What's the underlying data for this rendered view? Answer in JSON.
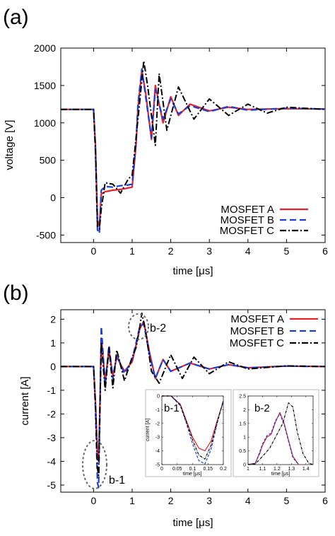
{
  "colors": {
    "mosfet_a": "#e8202a",
    "mosfet_b": "#1a3fd6",
    "mosfet_c": "#000000",
    "ellipse": "#666666"
  },
  "chart_data": [
    {
      "panel": "(a)",
      "type": "line",
      "xlabel": "time [μs]",
      "ylabel": "voltage [V]",
      "xlim": [
        -0.85,
        6
      ],
      "ylim": [
        -600,
        2000
      ],
      "xticks": [
        "0",
        "1",
        "2",
        "3",
        "4",
        "5",
        "6"
      ],
      "yticks": [
        "-500",
        "0",
        "500",
        "1000",
        "1500",
        "2000"
      ],
      "legend_position": "bottom-right",
      "series": [
        {
          "name": "MOSFET A",
          "x": [
            -0.85,
            0.0,
            0.05,
            0.1,
            0.15,
            0.2,
            0.3,
            0.5,
            0.7,
            0.9,
            1.0,
            1.1,
            1.15,
            1.25,
            1.35,
            1.5,
            1.6,
            1.8,
            2.0,
            2.2,
            2.5,
            3.0,
            3.5,
            4.0,
            5.0,
            6.0
          ],
          "y": [
            1180,
            1180,
            700,
            -300,
            -380,
            50,
            80,
            100,
            110,
            130,
            140,
            700,
            1200,
            1700,
            1400,
            780,
            1500,
            1000,
            1350,
            1100,
            1250,
            1160,
            1210,
            1180,
            1190,
            1185
          ]
        },
        {
          "name": "MOSFET B",
          "x": [
            -0.85,
            0.0,
            0.05,
            0.1,
            0.15,
            0.2,
            0.3,
            0.5,
            0.7,
            0.9,
            1.0,
            1.1,
            1.15,
            1.25,
            1.35,
            1.5,
            1.6,
            1.8,
            2.0,
            2.2,
            2.5,
            3.0,
            3.5,
            4.0,
            5.0,
            6.0
          ],
          "y": [
            1180,
            1180,
            600,
            -430,
            -480,
            100,
            150,
            140,
            160,
            170,
            180,
            750,
            1250,
            1720,
            1350,
            800,
            1450,
            1050,
            1320,
            1120,
            1230,
            1150,
            1220,
            1170,
            1195,
            1185
          ]
        },
        {
          "name": "MOSFET C",
          "x": [
            -0.85,
            0.0,
            0.05,
            0.1,
            0.15,
            0.2,
            0.3,
            0.5,
            0.7,
            0.9,
            1.0,
            1.1,
            1.2,
            1.3,
            1.4,
            1.6,
            1.7,
            1.9,
            2.2,
            2.6,
            3.0,
            3.5,
            4.0,
            4.5,
            5.0,
            6.0
          ],
          "y": [
            1180,
            1180,
            650,
            -380,
            -420,
            -150,
            200,
            180,
            60,
            250,
            300,
            800,
            1300,
            1830,
            1500,
            700,
            1660,
            900,
            1480,
            1050,
            1320,
            1100,
            1250,
            1130,
            1210,
            1180
          ]
        }
      ]
    },
    {
      "panel": "(b)",
      "type": "line",
      "xlabel": "time [μs]",
      "ylabel": "current [A]",
      "xlim": [
        -0.85,
        6
      ],
      "ylim": [
        -5.3,
        2.4
      ],
      "xticks": [
        "0",
        "1",
        "2",
        "3",
        "4",
        "5",
        "6"
      ],
      "yticks": [
        "-5",
        "-4",
        "-3",
        "-2",
        "-1",
        "0",
        "1",
        "2"
      ],
      "legend_position": "top-right",
      "annotations": [
        "b-1",
        "b-2"
      ],
      "series": [
        {
          "name": "MOSFET A",
          "x": [
            -0.85,
            0.0,
            0.05,
            0.1,
            0.13,
            0.16,
            0.2,
            0.3,
            0.4,
            0.5,
            0.6,
            0.8,
            1.0,
            1.1,
            1.2,
            1.3,
            1.45,
            1.6,
            1.8,
            2.0,
            2.5,
            3.0,
            3.5,
            4.0,
            5.0,
            6.0
          ],
          "y": [
            0,
            0,
            -1.5,
            -3.8,
            -4.0,
            -2.0,
            1.2,
            -0.6,
            0.7,
            -0.4,
            0.4,
            -0.2,
            0.2,
            0.9,
            1.6,
            1.9,
            0.6,
            -0.5,
            0.3,
            -0.2,
            0.15,
            -0.1,
            0.08,
            -0.05,
            0.02,
            0
          ]
        },
        {
          "name": "MOSFET B",
          "x": [
            -0.85,
            0.0,
            0.05,
            0.1,
            0.13,
            0.16,
            0.2,
            0.3,
            0.4,
            0.5,
            0.6,
            0.8,
            1.0,
            1.1,
            1.2,
            1.3,
            1.45,
            1.6,
            1.8,
            2.0,
            2.5,
            3.0,
            3.5,
            4.0,
            5.0,
            6.0
          ],
          "y": [
            0,
            0,
            -1.8,
            -4.9,
            -5.1,
            -2.5,
            1.7,
            -0.8,
            0.9,
            -0.5,
            0.5,
            -0.3,
            0.3,
            1.0,
            1.7,
            1.8,
            0.5,
            -0.5,
            0.3,
            -0.2,
            0.15,
            -0.1,
            0.08,
            -0.05,
            0.02,
            0
          ]
        },
        {
          "name": "MOSFET C",
          "x": [
            -0.85,
            0.0,
            0.05,
            0.1,
            0.13,
            0.16,
            0.2,
            0.3,
            0.4,
            0.5,
            0.6,
            0.8,
            1.0,
            1.1,
            1.2,
            1.25,
            1.35,
            1.5,
            1.7,
            2.0,
            2.3,
            2.6,
            3.0,
            3.5,
            4.0,
            5.0,
            6.0
          ],
          "y": [
            0,
            0,
            -1.6,
            -4.3,
            -4.6,
            -2.2,
            1.0,
            -1.0,
            0.8,
            -0.9,
            0.7,
            -0.6,
            0.4,
            0.8,
            1.7,
            2.25,
            1.5,
            -0.2,
            -0.7,
            0.5,
            -0.5,
            0.4,
            -0.3,
            0.2,
            -0.1,
            0.03,
            0
          ]
        }
      ],
      "insets": [
        {
          "label": "b-1",
          "xlabel": "time [μs]",
          "ylabel": "current [A]",
          "xlim": [
            0,
            0.2
          ],
          "ylim": [
            -5,
            0
          ],
          "xticks": [
            "0",
            "0.05",
            "0.1",
            "0.15",
            "0.2"
          ],
          "yticks": [
            "0",
            "-1",
            "-2",
            "-3",
            "-4",
            "-5"
          ],
          "series": [
            {
              "name": "MOSFET A",
              "x": [
                0,
                0.03,
                0.06,
                0.08,
                0.1,
                0.12,
                0.14,
                0.16,
                0.18,
                0.2
              ],
              "y": [
                0,
                0,
                -0.6,
                -1.8,
                -3.0,
                -3.8,
                -4.0,
                -3.3,
                -1.8,
                -0.4
              ]
            },
            {
              "name": "MOSFET B",
              "x": [
                0,
                0.03,
                0.06,
                0.08,
                0.1,
                0.12,
                0.14,
                0.16,
                0.18,
                0.2
              ],
              "y": [
                0,
                0,
                -0.7,
                -2.0,
                -3.5,
                -4.7,
                -4.95,
                -3.9,
                -2.0,
                -0.3
              ]
            },
            {
              "name": "MOSFET C",
              "x": [
                0,
                0.03,
                0.06,
                0.08,
                0.1,
                0.12,
                0.14,
                0.16,
                0.18,
                0.2
              ],
              "y": [
                0,
                0,
                -0.65,
                -1.9,
                -3.2,
                -4.3,
                -4.6,
                -3.6,
                -1.9,
                -0.35
              ]
            }
          ]
        },
        {
          "label": "b-2",
          "xlabel": "time [μs]",
          "ylabel": "",
          "xlim": [
            1,
            1.45
          ],
          "ylim": [
            0,
            2.5
          ],
          "xticks": [
            "1",
            "1.1",
            "1.2",
            "1.3",
            "1.4"
          ],
          "yticks": [
            "0",
            "0.5",
            "1",
            "1.5",
            "2",
            "2.5"
          ],
          "series": [
            {
              "name": "MOSFET A",
              "x": [
                1.0,
                1.05,
                1.08,
                1.1,
                1.13,
                1.16,
                1.19,
                1.22,
                1.25,
                1.28,
                1.31,
                1.35
              ],
              "y": [
                0,
                0.05,
                0.4,
                0.7,
                1.0,
                1.1,
                1.55,
                1.9,
                1.5,
                0.9,
                0.3,
                0
              ]
            },
            {
              "name": "MOSFET B",
              "x": [
                1.0,
                1.05,
                1.08,
                1.1,
                1.13,
                1.16,
                1.19,
                1.22,
                1.25,
                1.28,
                1.31,
                1.35
              ],
              "y": [
                0,
                0.05,
                0.45,
                0.75,
                1.05,
                1.15,
                1.6,
                1.85,
                1.45,
                0.85,
                0.25,
                0
              ]
            },
            {
              "name": "MOSFET C",
              "x": [
                1.0,
                1.05,
                1.1,
                1.15,
                1.2,
                1.24,
                1.28,
                1.31,
                1.34,
                1.38,
                1.42,
                1.45
              ],
              "y": [
                0,
                0.02,
                0.3,
                0.6,
                1.1,
                1.5,
                2.25,
                2.1,
                1.2,
                0.4,
                0.05,
                0
              ]
            }
          ]
        }
      ]
    }
  ]
}
